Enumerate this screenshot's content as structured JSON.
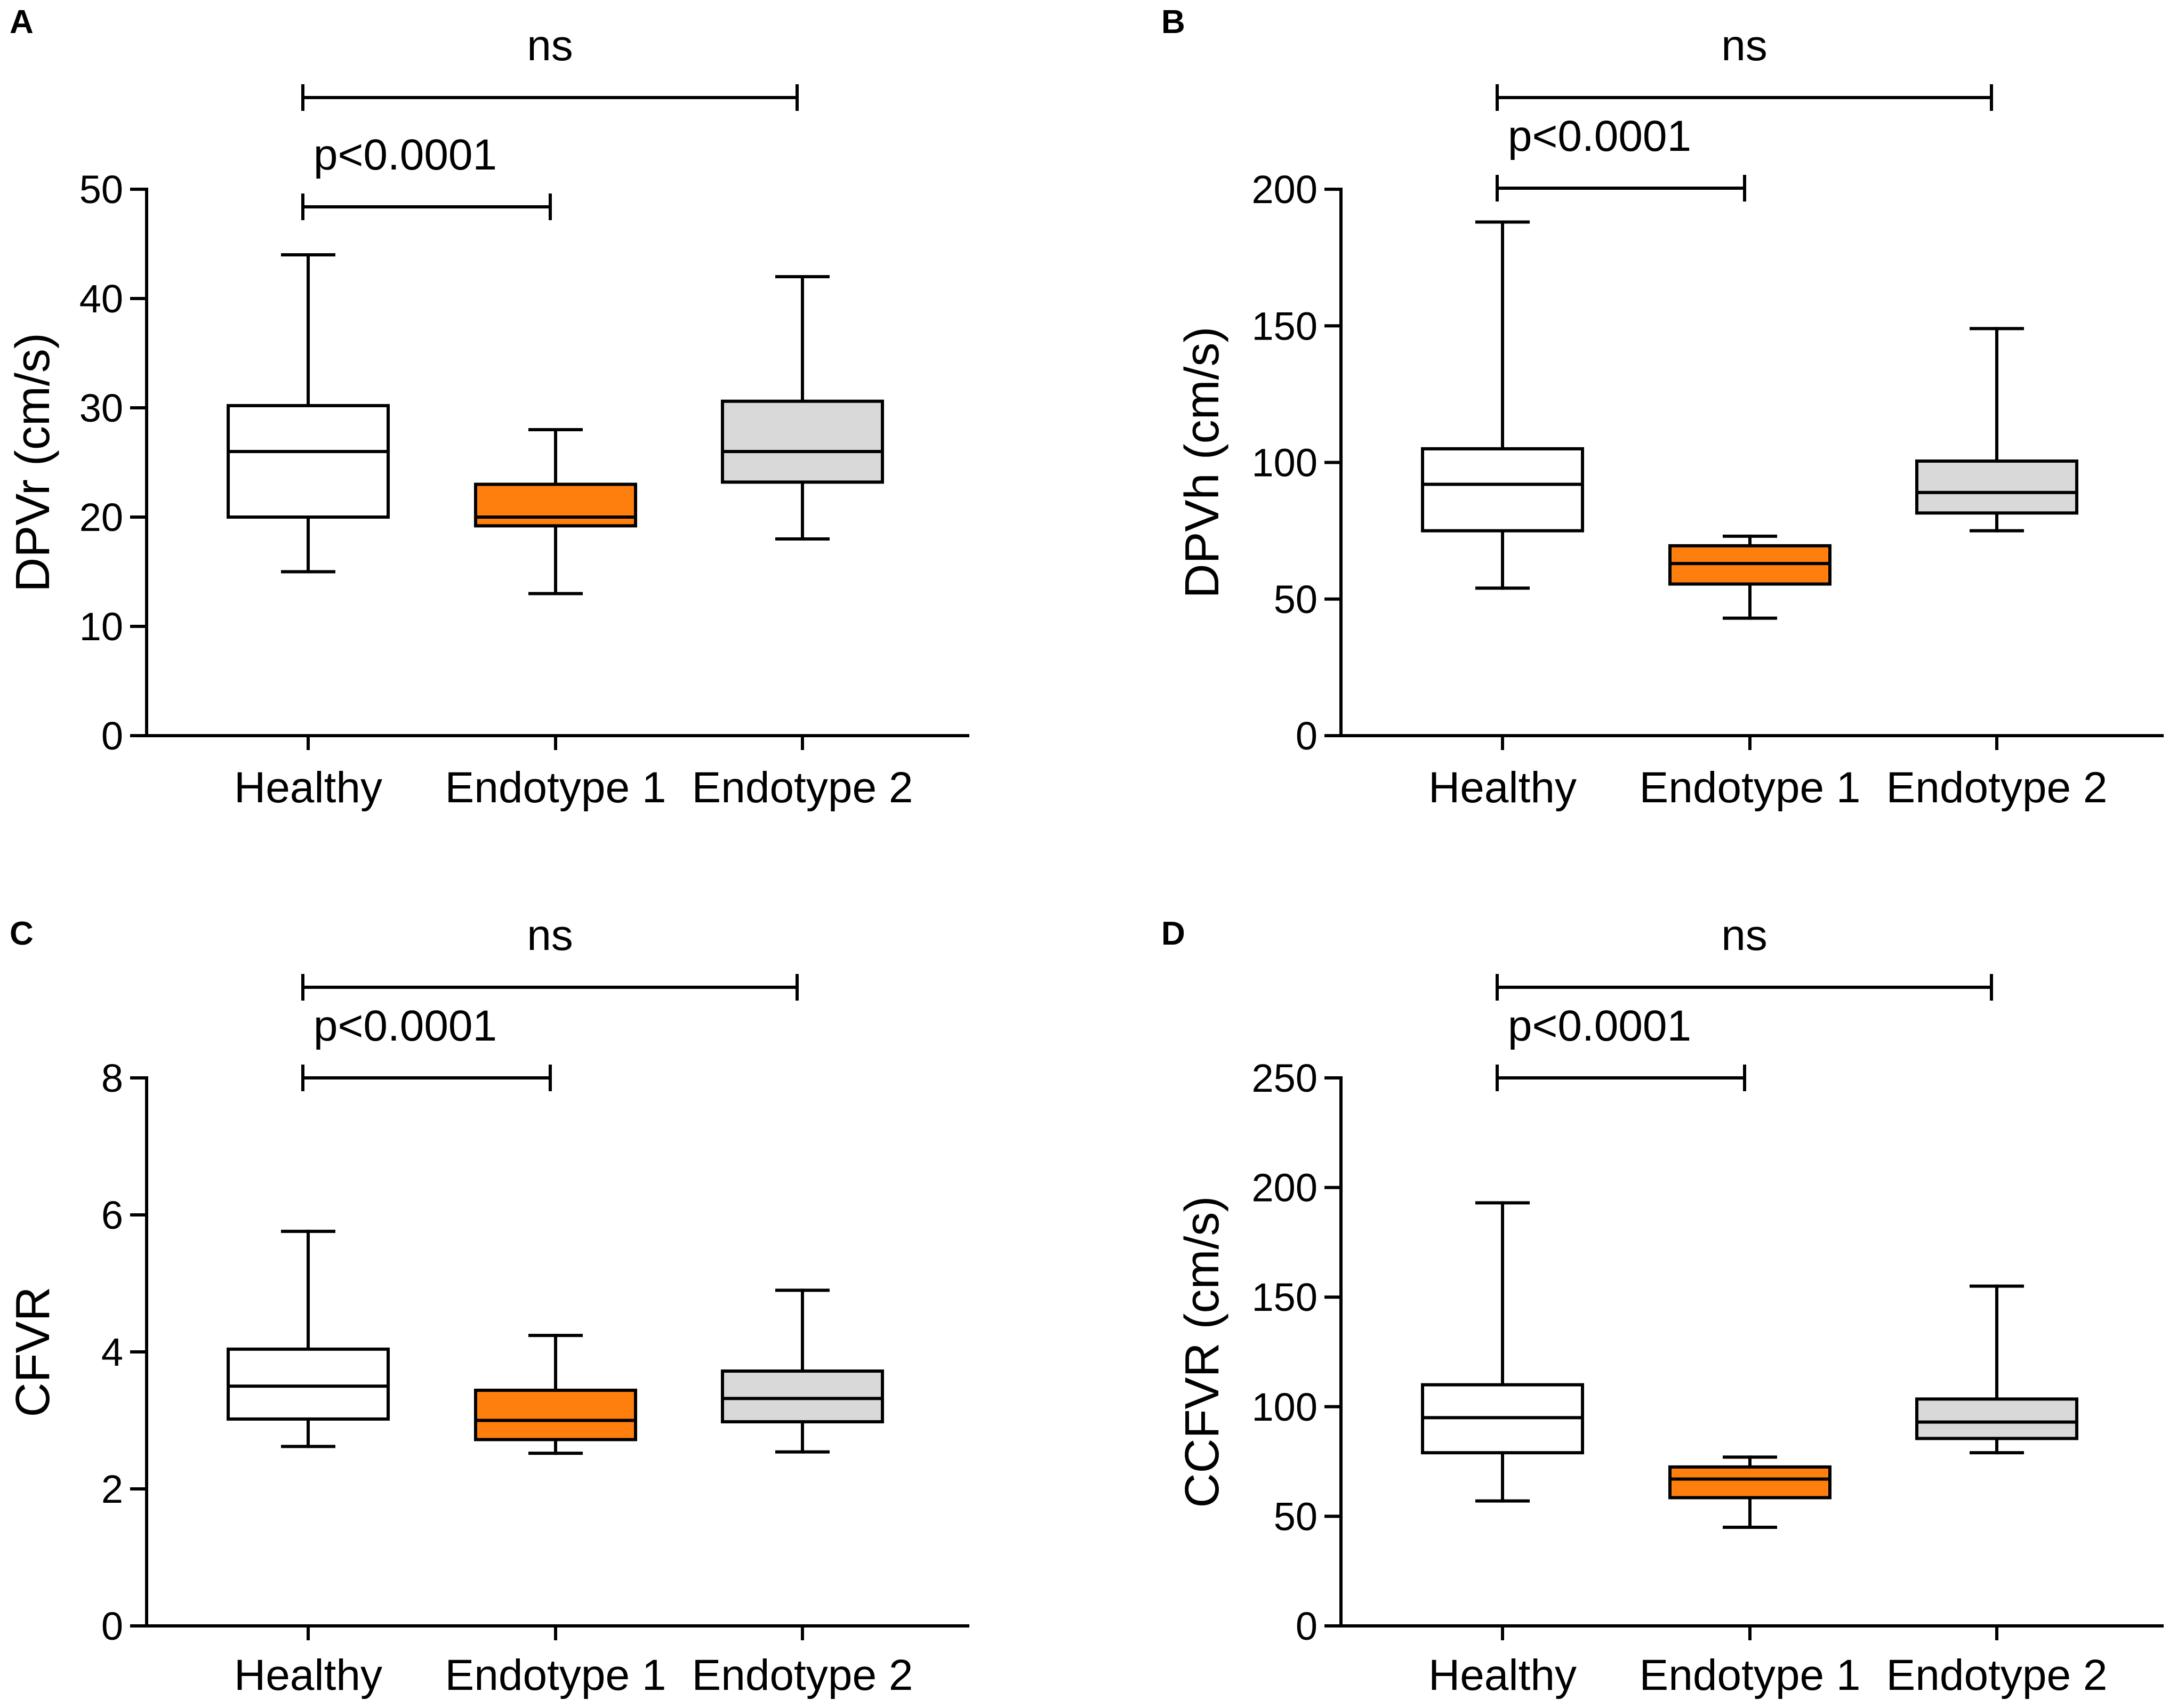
{
  "chart_data": [
    {
      "type": "boxplot",
      "panel": "A",
      "ylabel": "DPVr (cm/s)",
      "categories": [
        "Healthy",
        "Endotype 1",
        "Endotype 2"
      ],
      "ylim": [
        0,
        50
      ],
      "yticks": [
        0,
        10,
        20,
        30,
        40,
        50
      ],
      "yticklabels": [
        "0",
        "10",
        "20",
        "30",
        "40",
        "50"
      ],
      "boxes": [
        {
          "min": 15,
          "q1": 20,
          "median": 26,
          "q3": 30.2,
          "max": 44
        },
        {
          "min": 13,
          "q1": 19.2,
          "median": 20,
          "q3": 23,
          "max": 28
        },
        {
          "min": 18,
          "q1": 23.2,
          "median": 26,
          "q3": 30.6,
          "max": 42
        }
      ],
      "annotations": [
        {
          "text": "ns",
          "from": 0,
          "to": 2,
          "level": "top"
        },
        {
          "text": "p<0.0001",
          "from": 0,
          "to": 1,
          "level": "low"
        }
      ]
    },
    {
      "type": "boxplot",
      "panel": "B",
      "ylabel": "DPVh (cm/s)",
      "categories": [
        "Healthy",
        "Endotype 1",
        "Endotype 2"
      ],
      "ylim": [
        0,
        200
      ],
      "yticks": [
        0,
        50,
        100,
        150,
        200
      ],
      "yticklabels": [
        "0",
        "50",
        "100",
        "150",
        "200"
      ],
      "boxes": [
        {
          "min": 54,
          "q1": 75,
          "median": 92,
          "q3": 105,
          "max": 188
        },
        {
          "min": 43,
          "q1": 55.5,
          "median": 63,
          "q3": 69.5,
          "max": 73
        },
        {
          "min": 75,
          "q1": 81.5,
          "median": 89,
          "q3": 100.5,
          "max": 149
        }
      ],
      "annotations": [
        {
          "text": "ns",
          "from": 0,
          "to": 2,
          "level": "top"
        },
        {
          "text": "p<0.0001",
          "from": 0,
          "to": 1,
          "level": "low"
        }
      ]
    },
    {
      "type": "boxplot",
      "panel": "C",
      "ylabel": "CFVR",
      "categories": [
        "Healthy",
        "Endotype 1",
        "Endotype 2"
      ],
      "ylim": [
        0,
        8
      ],
      "yticks": [
        0,
        2,
        4,
        6,
        8
      ],
      "yticklabels": [
        "0",
        "2",
        "4",
        "6",
        "8"
      ],
      "boxes": [
        {
          "min": 2.62,
          "q1": 3.02,
          "median": 3.5,
          "q3": 4.04,
          "max": 5.76
        },
        {
          "min": 2.52,
          "q1": 2.72,
          "median": 3.0,
          "q3": 3.44,
          "max": 4.24
        },
        {
          "min": 2.54,
          "q1": 2.98,
          "median": 3.32,
          "q3": 3.72,
          "max": 4.9
        }
      ],
      "annotations": [
        {
          "text": "ns",
          "from": 0,
          "to": 2,
          "level": "top"
        },
        {
          "text": "p<0.0001",
          "from": 0,
          "to": 1,
          "level": "low"
        }
      ]
    },
    {
      "type": "boxplot",
      "panel": "D",
      "ylabel": "CCFVR (cm/s)",
      "categories": [
        "Healthy",
        "Endotype 1",
        "Endotype 2"
      ],
      "ylim": [
        0,
        250
      ],
      "yticks": [
        0,
        50,
        100,
        150,
        200,
        250
      ],
      "yticklabels": [
        "0",
        "50",
        "100",
        "150",
        "200",
        "250"
      ],
      "boxes": [
        {
          "min": 57,
          "q1": 79,
          "median": 95,
          "q3": 110,
          "max": 193
        },
        {
          "min": 45,
          "q1": 58.5,
          "median": 67,
          "q3": 72.5,
          "max": 77
        },
        {
          "min": 79,
          "q1": 85.5,
          "median": 93,
          "q3": 103.5,
          "max": 155
        }
      ],
      "annotations": [
        {
          "text": "ns",
          "from": 0,
          "to": 2,
          "level": "top"
        },
        {
          "text": "p<0.0001",
          "from": 0,
          "to": 1,
          "level": "low"
        }
      ]
    }
  ],
  "colors": {
    "healthy_fill": "#ffffff",
    "endotype1_fill": "#ff7f0e",
    "endotype2_fill": "#d9d9d9",
    "line": "#000000"
  }
}
